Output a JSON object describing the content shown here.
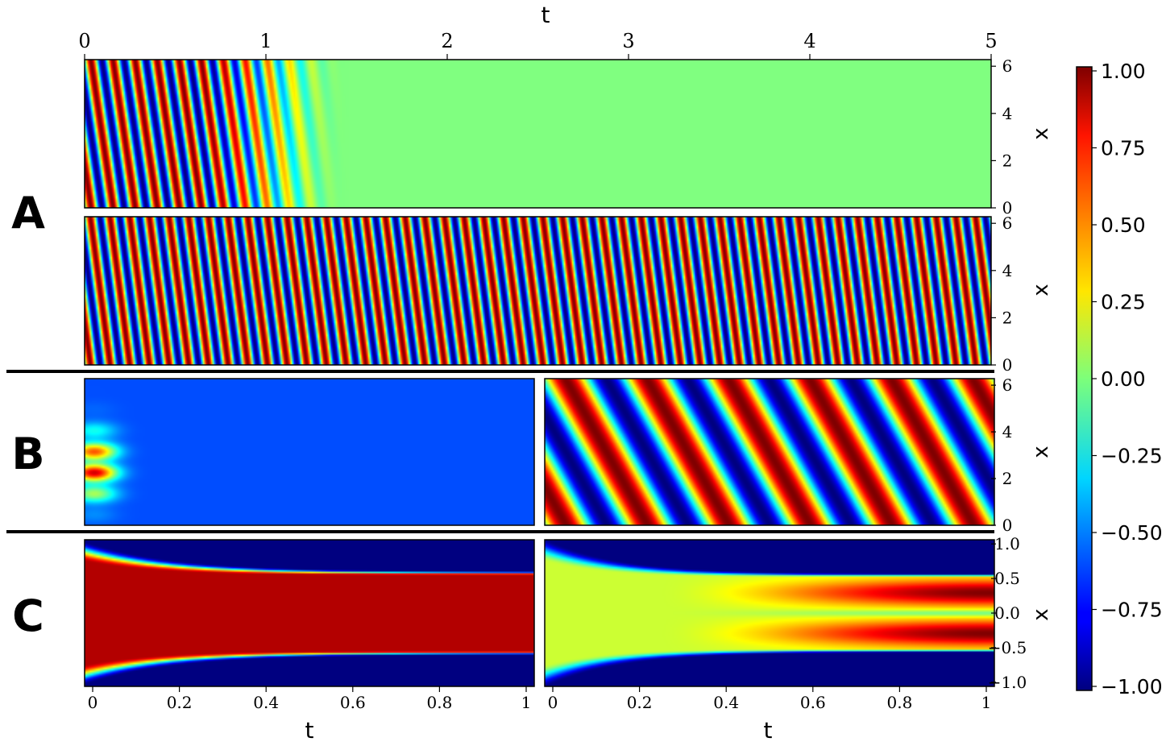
{
  "panel_labels": [
    "A",
    "B",
    "C"
  ],
  "top_axis": {
    "label": "t",
    "ticks": [
      "0",
      "1",
      "2",
      "3",
      "4",
      "5"
    ]
  },
  "bottom_axis": {
    "label": "t",
    "ticks": [
      "0",
      "0.2",
      "0.4",
      "0.6",
      "0.8",
      "1"
    ]
  },
  "colorbar": {
    "ticks": [
      "1.00",
      "0.75",
      "0.50",
      "0.25",
      "0.00",
      "−0.25",
      "−0.50",
      "−0.75",
      "−1.00"
    ],
    "colormap": "jet",
    "range": [
      -1.0,
      1.0
    ]
  },
  "chart_data": [
    {
      "type": "heatmap",
      "panel": "A",
      "row": "top",
      "xlabel": "",
      "ylabel": "x",
      "xlim": [
        0,
        5
      ],
      "ylim": [
        0,
        6.28
      ],
      "yticks": [
        "0",
        "2",
        "4",
        "6"
      ],
      "description": "traveling wave decaying to 0.0 after t ≈ 1.3"
    },
    {
      "type": "heatmap",
      "panel": "A",
      "row": "bottom",
      "xlabel": "",
      "ylabel": "x",
      "xlim": [
        0,
        5
      ],
      "ylim": [
        0,
        6.28
      ],
      "yticks": [
        "0",
        "2",
        "4",
        "6"
      ],
      "description": "sustained traveling wave, amplitude 1.0"
    },
    {
      "type": "heatmap",
      "panel": "B",
      "column": "left",
      "xlabel": "",
      "ylabel": "",
      "xlim": [
        0,
        1
      ],
      "ylim": [
        0,
        6.28
      ],
      "description": "nearly uniform field ≈ -0.6"
    },
    {
      "type": "heatmap",
      "panel": "B",
      "column": "right",
      "xlabel": "",
      "ylabel": "x",
      "xlim": [
        0,
        1
      ],
      "ylim": [
        0,
        6.28
      ],
      "yticks": [
        "0",
        "2",
        "4",
        "6"
      ],
      "description": "traveling wave, amplitude 1.0"
    },
    {
      "type": "heatmap",
      "panel": "C",
      "column": "left",
      "xlabel": "t",
      "ylabel": "",
      "xlim": [
        0,
        1
      ],
      "ylim": [
        -1,
        1
      ],
      "description": "band of +0.9 between interfaces at x = ±0.55"
    },
    {
      "type": "heatmap",
      "panel": "C",
      "column": "right",
      "xlabel": "t",
      "ylabel": "x",
      "xlim": [
        0,
        1
      ],
      "ylim": [
        -1,
        1
      ],
      "yticks": [
        "−1.0",
        "−0.5",
        "0.0",
        "0.5",
        "1.0"
      ],
      "description": "two +1.0 bands centred at x = ±0.28, bounded by interfaces at x = ±0.52"
    }
  ]
}
